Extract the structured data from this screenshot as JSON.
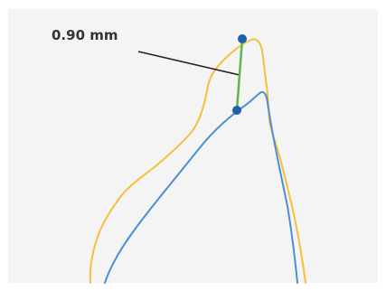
{
  "measurement": {
    "label": "0.90 mm",
    "value": 0.9,
    "unit": "mm"
  },
  "colors": {
    "background": "#f4f4f4",
    "outer_contour": "#f6bf3c",
    "inner_contour": "#4a8fd6",
    "measure_line": "#5cb848",
    "endpoint": "#1f5fb0",
    "leader_line": "#222222",
    "label_text": "#333333"
  },
  "icons": {
    "endpoint_marker": "filled-circle"
  }
}
